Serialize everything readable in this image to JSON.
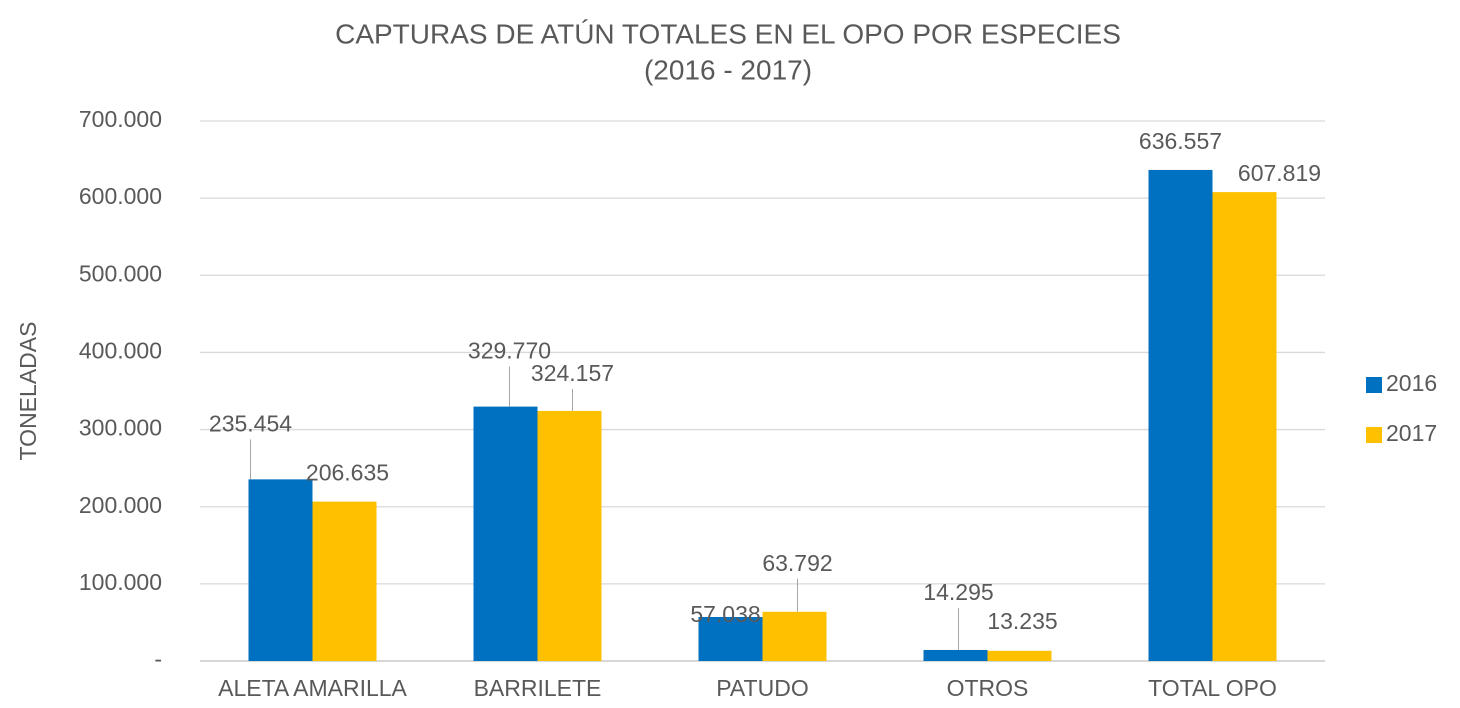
{
  "chart_data": {
    "type": "bar",
    "title": "CAPTURAS DE ATÚN TOTALES EN EL OPO POR ESPECIES",
    "subtitle": "(2016 - 2017)",
    "y_label": "TONELADAS",
    "categories": [
      "ALETA AMARILLA",
      "BARRILETE",
      "PATUDO",
      "OTROS",
      "TOTAL OPO"
    ],
    "series": [
      {
        "name": "2016",
        "color": "#0070c0",
        "values": [
          235454,
          329770,
          57038,
          14295,
          636557
        ],
        "value_labels": [
          "235.454",
          "329.770",
          "57.038",
          "14.295",
          "636.557"
        ]
      },
      {
        "name": "2017",
        "color": "#ffc000",
        "values": [
          206635,
          324157,
          63792,
          13235,
          607819
        ],
        "value_labels": [
          "206.635",
          "324.157",
          "63.792",
          "13.235",
          "607.819"
        ]
      }
    ],
    "ylim": [
      0,
      700000
    ],
    "yticks": [
      {
        "value": 0,
        "label": "-"
      },
      {
        "value": 100000,
        "label": "100.000"
      },
      {
        "value": 200000,
        "label": "200.000"
      },
      {
        "value": 300000,
        "label": "300.000"
      },
      {
        "value": 400000,
        "label": "400.000"
      },
      {
        "value": 500000,
        "label": "500.000"
      },
      {
        "value": 600000,
        "label": "600.000"
      },
      {
        "value": 700000,
        "label": "700.000"
      }
    ],
    "grid": true,
    "legend": "right"
  }
}
